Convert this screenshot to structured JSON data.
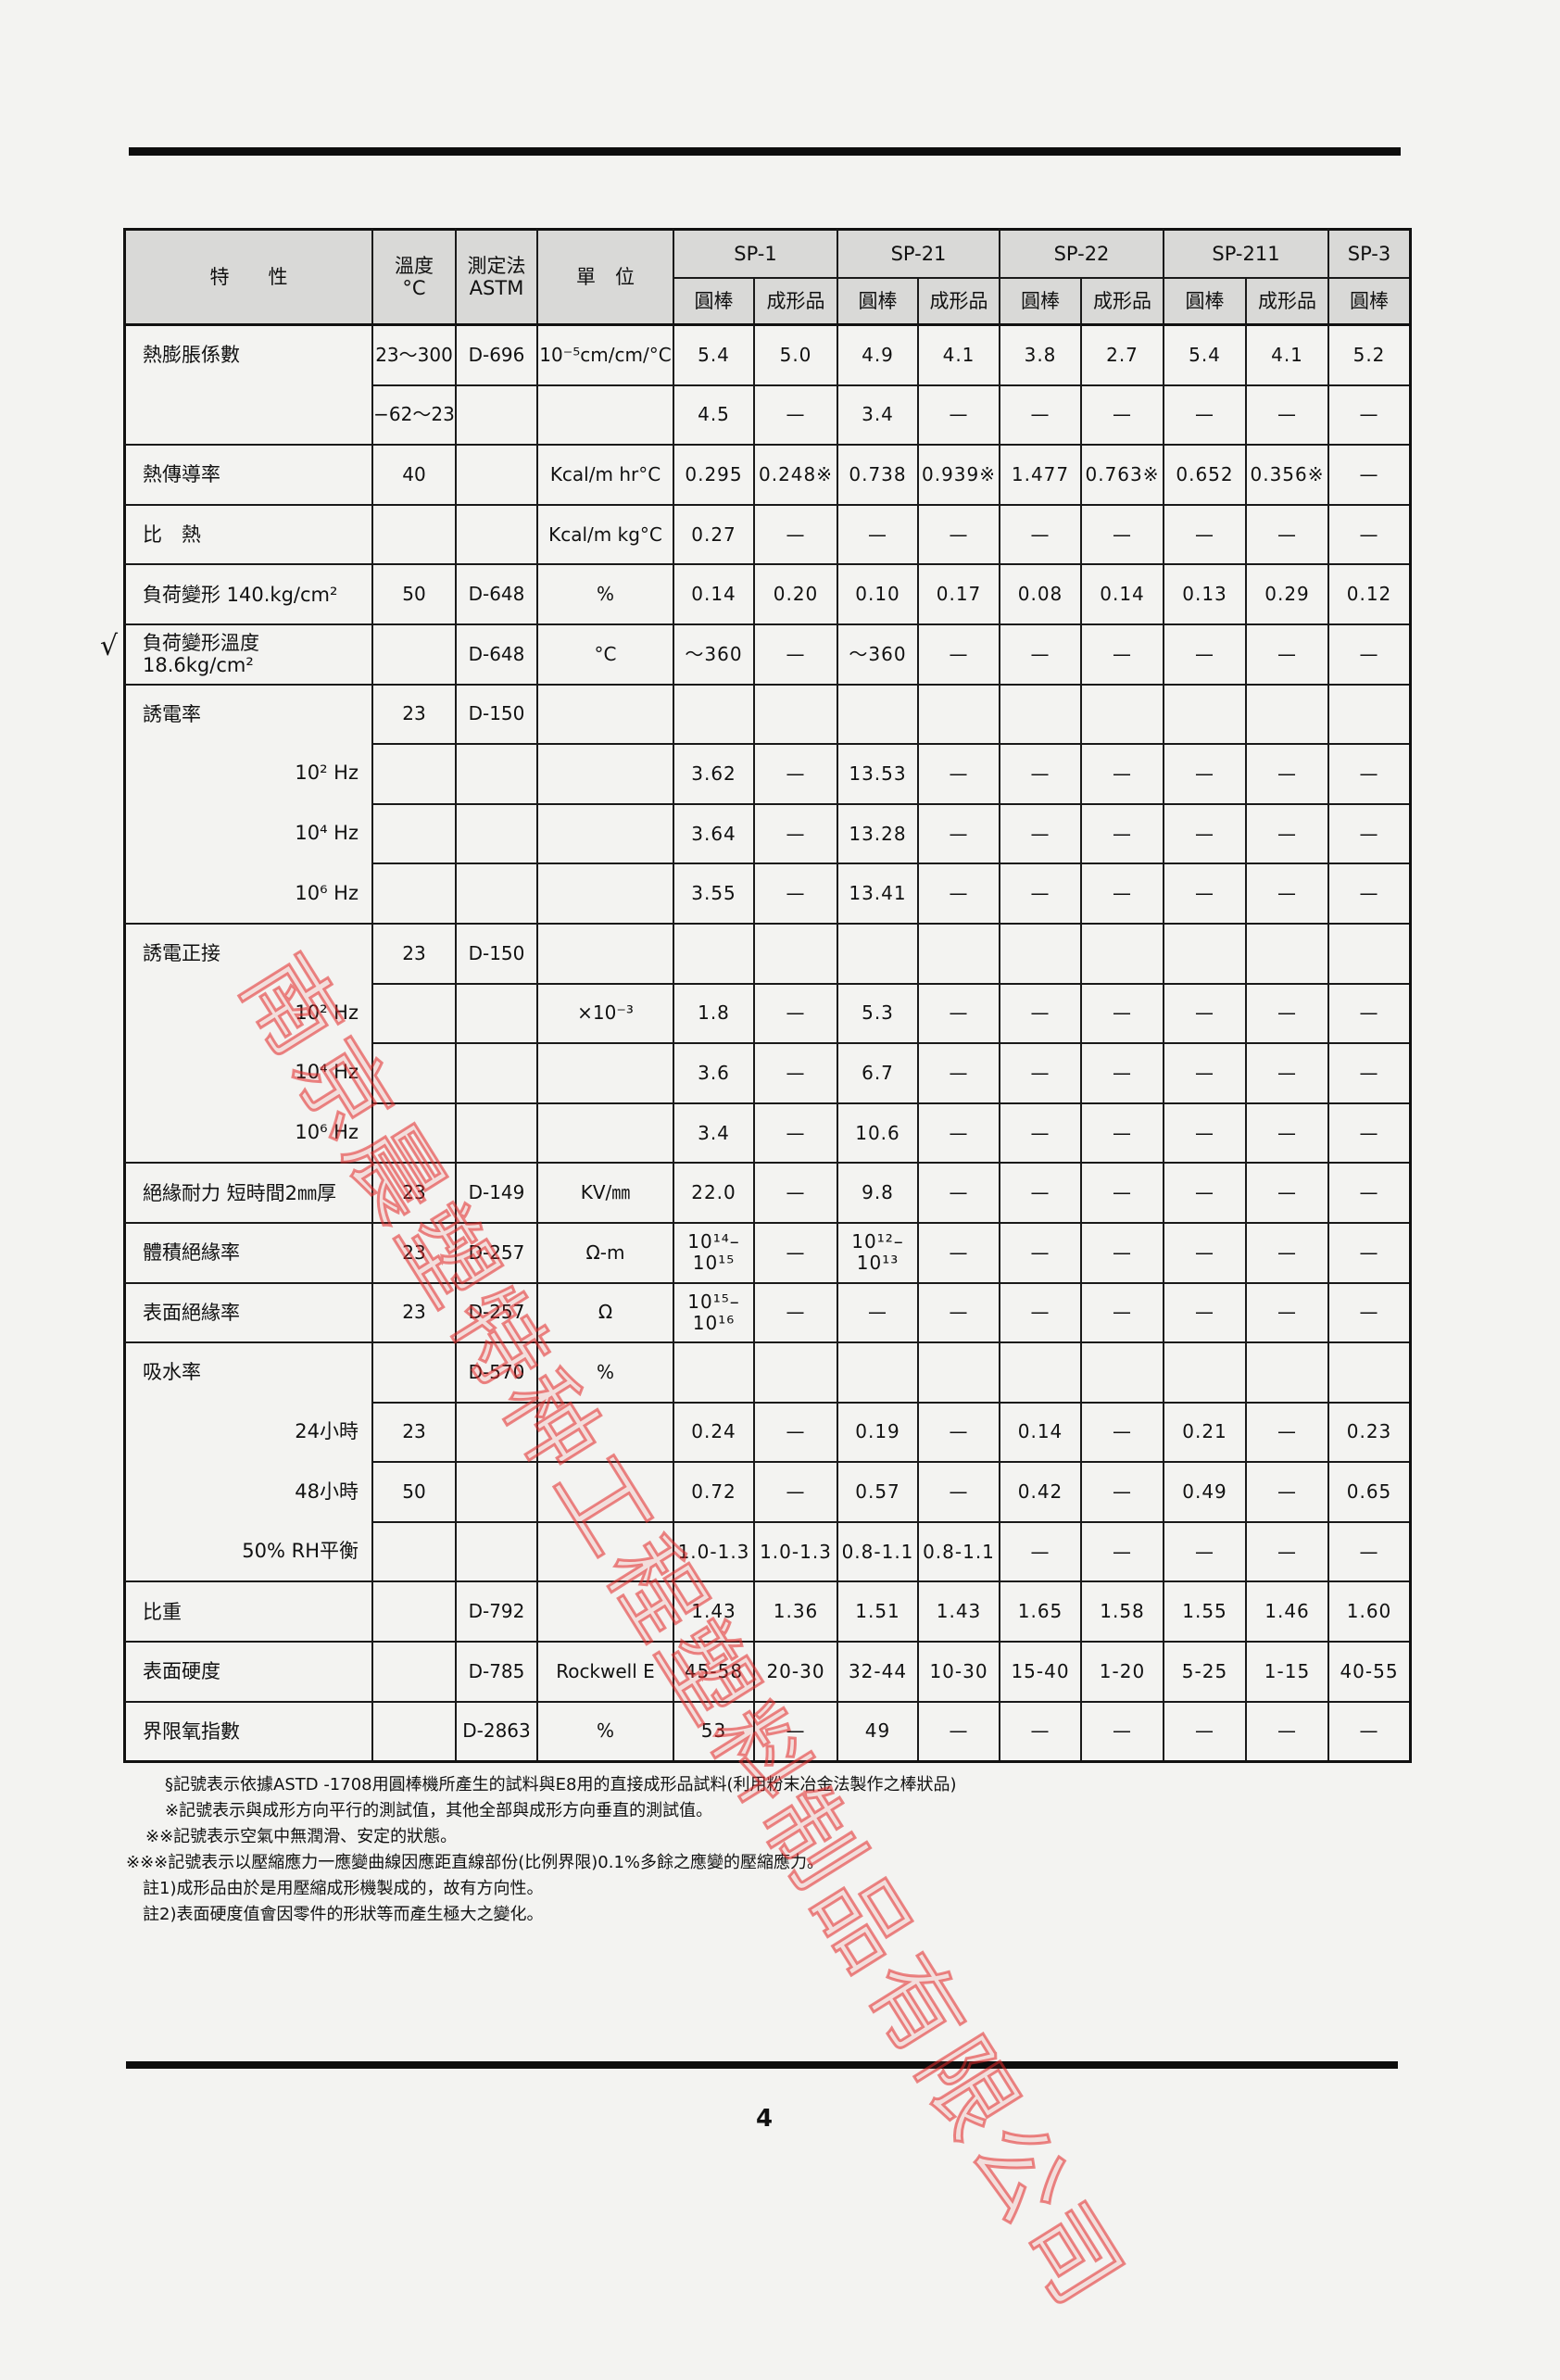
{
  "table": {
    "header": {
      "property": "特　　性",
      "temp": "溫度\n°C",
      "method": "測定法\nASTM",
      "unit": "單　位",
      "groups": [
        "SP-1",
        "SP-21",
        "SP-22",
        "SP-211",
        "SP-3"
      ],
      "subheaders": [
        "圓棒",
        "成形品",
        "圓棒",
        "成形品",
        "圓棒",
        "成形品",
        "圓棒",
        "成形品",
        "圓棒"
      ]
    },
    "rows": [
      {
        "property": "熱膨脹係數",
        "temp": "23〜300",
        "method": "D-696",
        "unit": "10⁻⁵cm/cm/°C",
        "values": [
          "5.4",
          "5.0",
          "4.9",
          "4.1",
          "3.8",
          "2.7",
          "5.4",
          "4.1",
          "5.2"
        ]
      },
      {
        "property": "",
        "sub": true,
        "temp": "−62〜23",
        "method": "",
        "unit": "",
        "values": [
          "4.5",
          "—",
          "3.4",
          "—",
          "—",
          "—",
          "—",
          "—",
          "—"
        ]
      },
      {
        "property": "熱傳導率",
        "temp": "40",
        "method": "",
        "unit": "Kcal/m hr°C",
        "values": [
          "0.295",
          "0.248※",
          "0.738",
          "0.939※",
          "1.477",
          "0.763※",
          "0.652",
          "0.356※",
          "—"
        ]
      },
      {
        "property": "比　熱",
        "temp": "",
        "method": "",
        "unit": "Kcal/m kg°C",
        "values": [
          "0.27",
          "—",
          "—",
          "—",
          "—",
          "—",
          "—",
          "—",
          "—"
        ]
      },
      {
        "property": "負荷變形 140.kg/cm²",
        "temp": "50",
        "method": "D-648",
        "unit": "%",
        "values": [
          "0.14",
          "0.20",
          "0.10",
          "0.17",
          "0.08",
          "0.14",
          "0.13",
          "0.29",
          "0.12"
        ]
      },
      {
        "property": "負荷變形溫度 18.6kg/cm²",
        "temp": "",
        "method": "D-648",
        "unit": "°C",
        "values": [
          "〜360",
          "—",
          "〜360",
          "—",
          "—",
          "—",
          "—",
          "—",
          "—"
        ]
      },
      {
        "property": "誘電率",
        "temp": "23",
        "method": "D-150",
        "unit": "",
        "values": [
          "",
          "",
          "",
          "",
          "",
          "",
          "",
          "",
          ""
        ]
      },
      {
        "property": "10² Hz",
        "sub": true,
        "temp": "",
        "method": "",
        "unit": "",
        "values": [
          "3.62",
          "—",
          "13.53",
          "—",
          "—",
          "—",
          "—",
          "—",
          "—"
        ]
      },
      {
        "property": "10⁴ Hz",
        "sub": true,
        "temp": "",
        "method": "",
        "unit": "",
        "values": [
          "3.64",
          "—",
          "13.28",
          "—",
          "—",
          "—",
          "—",
          "—",
          "—"
        ]
      },
      {
        "property": "10⁶ Hz",
        "sub": true,
        "temp": "",
        "method": "",
        "unit": "",
        "values": [
          "3.55",
          "—",
          "13.41",
          "—",
          "—",
          "—",
          "—",
          "—",
          "—"
        ]
      },
      {
        "property": "誘電正接",
        "temp": "23",
        "method": "D-150",
        "unit": "",
        "values": [
          "",
          "",
          "",
          "",
          "",
          "",
          "",
          "",
          ""
        ]
      },
      {
        "property": "10² Hz",
        "sub": true,
        "temp": "",
        "method": "",
        "unit": "×10⁻³",
        "values": [
          "1.8",
          "—",
          "5.3",
          "—",
          "—",
          "—",
          "—",
          "—",
          "—"
        ]
      },
      {
        "property": "10⁴ Hz",
        "sub": true,
        "temp": "",
        "method": "",
        "unit": "",
        "values": [
          "3.6",
          "—",
          "6.7",
          "—",
          "—",
          "—",
          "—",
          "—",
          "—"
        ]
      },
      {
        "property": "10⁶ Hz",
        "sub": true,
        "temp": "",
        "method": "",
        "unit": "",
        "values": [
          "3.4",
          "—",
          "10.6",
          "—",
          "—",
          "—",
          "—",
          "—",
          "—"
        ]
      },
      {
        "property": "絕緣耐力 短時間2㎜厚",
        "temp": "23",
        "method": "D-149",
        "unit": "KV/㎜",
        "values": [
          "22.0",
          "—",
          "9.8",
          "—",
          "—",
          "—",
          "—",
          "—",
          "—"
        ]
      },
      {
        "property": "體積絕緣率",
        "temp": "23",
        "method": "D-257",
        "unit": "Ω-m",
        "values": [
          "10¹⁴–\n10¹⁵",
          "—",
          "10¹²–\n10¹³",
          "—",
          "—",
          "—",
          "—",
          "—",
          "—"
        ]
      },
      {
        "property": "表面絕緣率",
        "temp": "23",
        "method": "D-257",
        "unit": "Ω",
        "values": [
          "10¹⁵–\n10¹⁶",
          "—",
          "—",
          "—",
          "—",
          "—",
          "—",
          "—",
          "—"
        ]
      },
      {
        "property": "吸水率",
        "temp": "",
        "method": "D-570",
        "unit": "%",
        "values": [
          "",
          "",
          "",
          "",
          "",
          "",
          "",
          "",
          ""
        ]
      },
      {
        "property": "24小時",
        "sub": true,
        "temp": "23",
        "method": "",
        "unit": "",
        "values": [
          "0.24",
          "—",
          "0.19",
          "—",
          "0.14",
          "—",
          "0.21",
          "—",
          "0.23"
        ]
      },
      {
        "property": "48小時",
        "sub": true,
        "temp": "50",
        "method": "",
        "unit": "",
        "values": [
          "0.72",
          "—",
          "0.57",
          "—",
          "0.42",
          "—",
          "0.49",
          "—",
          "0.65"
        ]
      },
      {
        "property": "50% RH平衡",
        "sub": true,
        "temp": "",
        "method": "",
        "unit": "",
        "values": [
          "1.0-1.3",
          "1.0-1.3",
          "0.8-1.1",
          "0.8-1.1",
          "—",
          "—",
          "—",
          "—",
          "—"
        ]
      },
      {
        "property": "比重",
        "temp": "",
        "method": "D-792",
        "unit": "",
        "values": [
          "1.43",
          "1.36",
          "1.51",
          "1.43",
          "1.65",
          "1.58",
          "1.55",
          "1.46",
          "1.60"
        ]
      },
      {
        "property": "表面硬度",
        "temp": "",
        "method": "D-785",
        "unit": "Rockwell E",
        "values": [
          "45-58",
          "20-30",
          "32-44",
          "10-30",
          "15-40",
          "1-20",
          "5-25",
          "1-15",
          "40-55"
        ]
      },
      {
        "property": "界限氧指數",
        "temp": "",
        "method": "D-2863",
        "unit": "%",
        "values": [
          "53",
          "—",
          "49",
          "—",
          "—",
          "—",
          "—",
          "—",
          "—"
        ]
      }
    ]
  },
  "check_mark": "√",
  "footnotes": [
    "§記號表示依據ASTD -1708用圓棒機所產生的試料與E8用的直接成形品試料(利用粉末冶金法製作之棒狀品)",
    "※記號表示與成形方向平行的測試值，其他全部與成形方向垂直的測試值。",
    "※※記號表示空氣中無潤滑、安定的狀態。",
    "※※※記號表示以壓縮應力一應變曲線因應距直線部份(比例界限)0.1%多餘之應變的壓縮應力。",
    "註1)成形品由於是用壓縮成形機製成的，故有方向性。",
    "註2)表面硬度值會因零件的形狀等而產生極大之變化。"
  ],
  "page_number": "4",
  "watermark": "南京晨塑特种工程塑料制品有限公司",
  "colors": {
    "watermark": "#e03c3c",
    "header_bg": "#d9d9d7",
    "rule": "#0d0d0d"
  }
}
